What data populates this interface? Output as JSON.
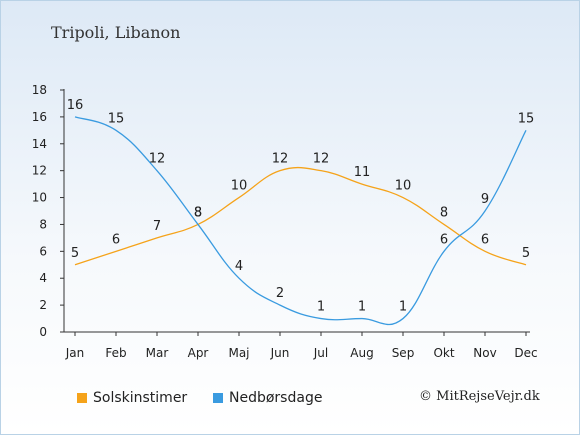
{
  "chart_data": {
    "type": "line",
    "title": "Tripoli, Libanon",
    "categories": [
      "Jan",
      "Feb",
      "Mar",
      "Apr",
      "Maj",
      "Jun",
      "Jul",
      "Aug",
      "Sep",
      "Okt",
      "Nov",
      "Dec"
    ],
    "y_ticks": [
      "0",
      "2",
      "4",
      "6",
      "8",
      "10",
      "12",
      "14",
      "16",
      "18"
    ],
    "ylim": [
      0,
      18
    ],
    "grid": false,
    "legend_position": "bottom-left",
    "series": [
      {
        "name": "Solskinstimer",
        "color": "#f5a31a",
        "values": [
          5,
          6,
          7,
          8,
          10,
          12,
          12,
          11,
          10,
          8,
          6,
          5
        ]
      },
      {
        "name": "Nedbørsdage",
        "color": "#3a9be0",
        "values": [
          16,
          15,
          12,
          8,
          4,
          2,
          1,
          1,
          1,
          6,
          9,
          15
        ]
      }
    ]
  },
  "legend": {
    "sun_label": "Solskinstimer",
    "rain_label": "Nedbørsdage",
    "sun_color": "#f5a31a",
    "rain_color": "#3a9be0"
  },
  "footer": {
    "copyright": "© MitRejseVejr.dk"
  }
}
